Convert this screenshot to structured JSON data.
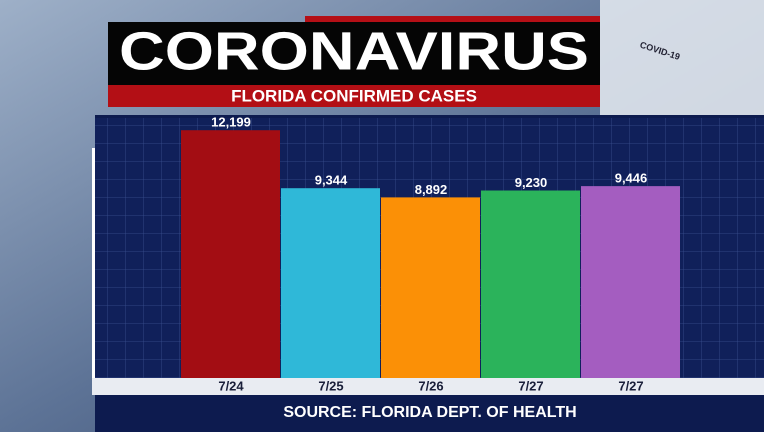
{
  "chart_data": {
    "type": "bar",
    "title": "CORONAVIRUS",
    "subtitle": "FLORIDA CONFIRMED CASES",
    "source": "SOURCE: FLORIDA DEPT. OF HEALTH",
    "background_label": "COVID-19",
    "categories": [
      "7/24",
      "7/25",
      "7/26",
      "7/27",
      "7/27"
    ],
    "values": [
      12199,
      9344,
      8892,
      9230,
      9446
    ],
    "value_labels": [
      "12,199",
      "9,344",
      "8,892",
      "9,230",
      "9,446"
    ],
    "colors": [
      "#a30d13",
      "#2fb8d8",
      "#fb9006",
      "#2bb35b",
      "#a45dc0"
    ],
    "ylim": [
      0,
      12800
    ]
  }
}
